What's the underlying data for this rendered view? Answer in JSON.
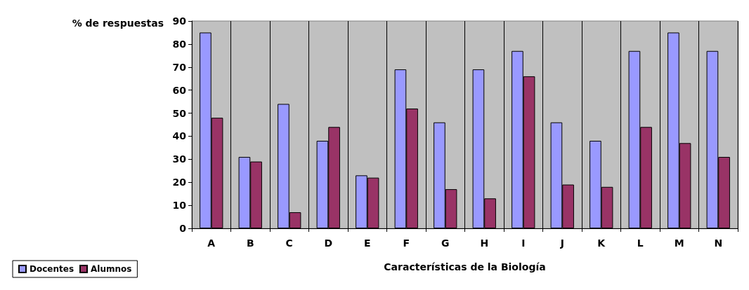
{
  "chart_data": {
    "type": "bar",
    "xlabel": "Características de la Biología",
    "ylabel": "% de respuestas",
    "categories": [
      "A",
      "B",
      "C",
      "D",
      "E",
      "F",
      "G",
      "H",
      "I",
      "J",
      "K",
      "L",
      "M",
      "N"
    ],
    "series": [
      {
        "name": "Docentes",
        "color": "#9999ff",
        "values": [
          85,
          31,
          54,
          38,
          23,
          69,
          46,
          69,
          77,
          46,
          38,
          77,
          85,
          77
        ]
      },
      {
        "name": "Alumnos",
        "color": "#993366",
        "values": [
          48,
          29,
          7,
          44,
          22,
          52,
          17,
          13,
          66,
          19,
          18,
          44,
          37,
          31
        ]
      }
    ],
    "ylim": [
      0,
      90
    ],
    "yticks": [
      0,
      10,
      20,
      30,
      40,
      50,
      60,
      70,
      80,
      90
    ],
    "grid": "x",
    "legend": "bottom left"
  }
}
